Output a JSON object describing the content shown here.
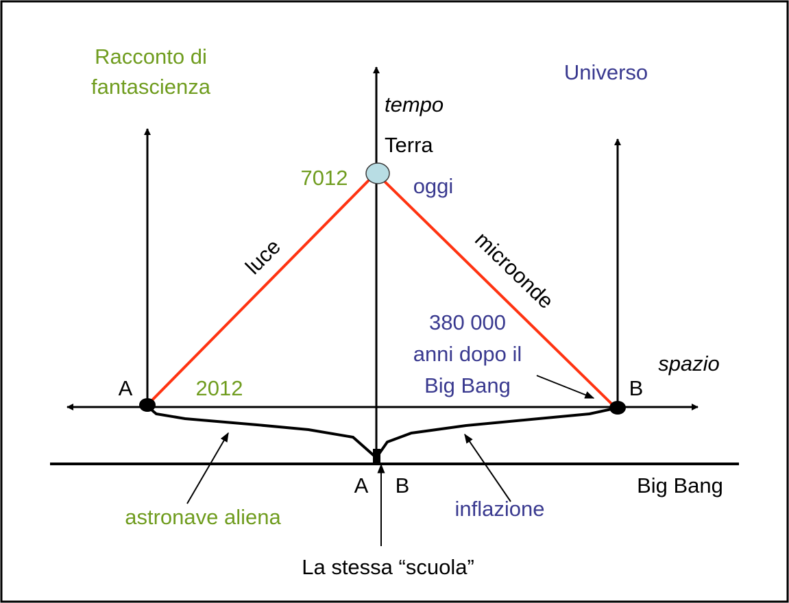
{
  "colors": {
    "green": "#6f9c1e",
    "blue": "#39398f",
    "red": "#ff3311",
    "black": "#000000",
    "earth": "#b8dde4"
  },
  "labels": {
    "racconto_line1": "Racconto di",
    "racconto_line2": "fantascienza",
    "universo": "Universo",
    "tempo": "tempo",
    "terra": "Terra",
    "year_7012": "7012",
    "oggi": "oggi",
    "luce": "luce",
    "microonde": "microonde",
    "after_bb_line1": "380 000",
    "after_bb_line2": "anni dopo il",
    "after_bb_line3": "Big Bang",
    "spazio": "spazio",
    "point_a_left": "A",
    "year_2012": "2012",
    "point_b_right": "B",
    "bottom_a": "A",
    "bottom_b": "B",
    "big_bang": "Big Bang",
    "astronave": "astronave aliena",
    "inflazione": "inflazione",
    "stessa_scuola": "La stessa “scuola”"
  }
}
